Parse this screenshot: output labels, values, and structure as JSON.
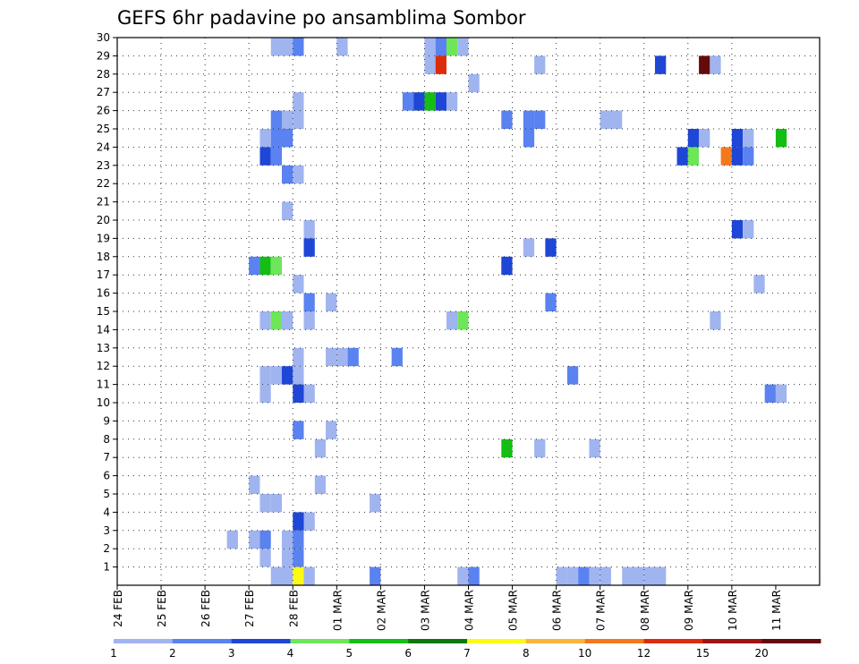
{
  "chart_data": {
    "type": "heatmap",
    "title": "GEFS 6hr padavine po ansamblima Sombor",
    "x_tick_labels": [
      "24 FEB",
      "25 FEB",
      "26 FEB",
      "27 FEB",
      "28 FEB",
      "01 MAR",
      "02 MAR",
      "03 MAR",
      "04 MAR",
      "05 MAR",
      "06 MAR",
      "07 MAR",
      "08 MAR",
      "09 MAR",
      "10 MAR",
      "11 MAR"
    ],
    "y_tick_labels": [
      "1",
      "2",
      "3",
      "4",
      "5",
      "6",
      "7",
      "8",
      "9",
      "10",
      "11",
      "12",
      "13",
      "14",
      "15",
      "16",
      "17",
      "18",
      "19",
      "20",
      "21",
      "22",
      "23",
      "24",
      "25",
      "26",
      "27",
      "28",
      "29",
      "30"
    ],
    "x_range_days": [
      0,
      16
    ],
    "y_range": [
      0,
      30
    ],
    "step_days": 0.25,
    "grid": true,
    "legend": {
      "position": "bottom",
      "labels": [
        "1",
        "2",
        "3",
        "4",
        "5",
        "6",
        "7",
        "8",
        "10",
        "12",
        "15",
        "20"
      ],
      "colors": [
        "#a0b4f0",
        "#5a82f0",
        "#1e46d7",
        "#6ee65a",
        "#14be14",
        "#0a780a",
        "#fafa14",
        "#fab43c",
        "#f5781e",
        "#dc2d0a",
        "#a01414",
        "#640a0a"
      ]
    },
    "cells": [
      {
        "m": 30,
        "t": 3.5,
        "c": "#a0b4f0"
      },
      {
        "m": 30,
        "t": 3.75,
        "c": "#a0b4f0"
      },
      {
        "m": 30,
        "t": 4.0,
        "c": "#5a82f0"
      },
      {
        "m": 30,
        "t": 5.0,
        "c": "#a0b4f0"
      },
      {
        "m": 30,
        "t": 7.0,
        "c": "#a0b4f0"
      },
      {
        "m": 30,
        "t": 7.25,
        "c": "#5a82f0"
      },
      {
        "m": 30,
        "t": 7.5,
        "c": "#6ee65a"
      },
      {
        "m": 30,
        "t": 7.75,
        "c": "#a0b4f0"
      },
      {
        "m": 29,
        "t": 7.0,
        "c": "#a0b4f0"
      },
      {
        "m": 29,
        "t": 7.25,
        "c": "#dc2d0a"
      },
      {
        "m": 29,
        "t": 9.5,
        "c": "#a0b4f0"
      },
      {
        "m": 29,
        "t": 12.25,
        "c": "#1e46d7"
      },
      {
        "m": 29,
        "t": 13.25,
        "c": "#640a0a"
      },
      {
        "m": 29,
        "t": 13.5,
        "c": "#a0b4f0"
      },
      {
        "m": 28,
        "t": 8.0,
        "c": "#a0b4f0"
      },
      {
        "m": 27,
        "t": 4.0,
        "c": "#a0b4f0"
      },
      {
        "m": 27,
        "t": 6.5,
        "c": "#5a82f0"
      },
      {
        "m": 27,
        "t": 6.75,
        "c": "#1e46d7"
      },
      {
        "m": 27,
        "t": 7.0,
        "c": "#14be14"
      },
      {
        "m": 27,
        "t": 7.25,
        "c": "#1e46d7"
      },
      {
        "m": 27,
        "t": 7.5,
        "c": "#a0b4f0"
      },
      {
        "m": 26,
        "t": 3.5,
        "c": "#5a82f0"
      },
      {
        "m": 26,
        "t": 3.75,
        "c": "#a0b4f0"
      },
      {
        "m": 26,
        "t": 4.0,
        "c": "#a0b4f0"
      },
      {
        "m": 26,
        "t": 8.75,
        "c": "#5a82f0"
      },
      {
        "m": 26,
        "t": 9.25,
        "c": "#5a82f0"
      },
      {
        "m": 26,
        "t": 9.5,
        "c": "#5a82f0"
      },
      {
        "m": 26,
        "t": 11.0,
        "c": "#a0b4f0"
      },
      {
        "m": 26,
        "t": 11.25,
        "c": "#a0b4f0"
      },
      {
        "m": 25,
        "t": 3.25,
        "c": "#a0b4f0"
      },
      {
        "m": 25,
        "t": 3.5,
        "c": "#5a82f0"
      },
      {
        "m": 25,
        "t": 3.75,
        "c": "#5a82f0"
      },
      {
        "m": 25,
        "t": 9.25,
        "c": "#5a82f0"
      },
      {
        "m": 25,
        "t": 13.0,
        "c": "#1e46d7"
      },
      {
        "m": 25,
        "t": 13.25,
        "c": "#a0b4f0"
      },
      {
        "m": 25,
        "t": 14.0,
        "c": "#1e46d7"
      },
      {
        "m": 25,
        "t": 14.25,
        "c": "#a0b4f0"
      },
      {
        "m": 25,
        "t": 15.0,
        "c": "#14be14"
      },
      {
        "m": 24,
        "t": 3.25,
        "c": "#1e46d7"
      },
      {
        "m": 24,
        "t": 3.5,
        "c": "#5a82f0"
      },
      {
        "m": 24,
        "t": 12.75,
        "c": "#1e46d7"
      },
      {
        "m": 24,
        "t": 13.0,
        "c": "#6ee65a"
      },
      {
        "m": 24,
        "t": 13.75,
        "c": "#f5781e"
      },
      {
        "m": 24,
        "t": 14.0,
        "c": "#1e46d7"
      },
      {
        "m": 24,
        "t": 14.25,
        "c": "#5a82f0"
      },
      {
        "m": 23,
        "t": 3.75,
        "c": "#5a82f0"
      },
      {
        "m": 23,
        "t": 4.0,
        "c": "#a0b4f0"
      },
      {
        "m": 21,
        "t": 3.75,
        "c": "#a0b4f0"
      },
      {
        "m": 20,
        "t": 4.25,
        "c": "#a0b4f0"
      },
      {
        "m": 20,
        "t": 14.0,
        "c": "#1e46d7"
      },
      {
        "m": 20,
        "t": 14.25,
        "c": "#a0b4f0"
      },
      {
        "m": 19,
        "t": 4.25,
        "c": "#1e46d7"
      },
      {
        "m": 19,
        "t": 9.25,
        "c": "#a0b4f0"
      },
      {
        "m": 19,
        "t": 9.75,
        "c": "#1e46d7"
      },
      {
        "m": 18,
        "t": 3.0,
        "c": "#5a82f0"
      },
      {
        "m": 18,
        "t": 3.25,
        "c": "#14be14"
      },
      {
        "m": 18,
        "t": 3.5,
        "c": "#6ee65a"
      },
      {
        "m": 18,
        "t": 8.75,
        "c": "#1e46d7"
      },
      {
        "m": 17,
        "t": 4.0,
        "c": "#a0b4f0"
      },
      {
        "m": 17,
        "t": 14.5,
        "c": "#a0b4f0"
      },
      {
        "m": 16,
        "t": 4.25,
        "c": "#5a82f0"
      },
      {
        "m": 16,
        "t": 4.75,
        "c": "#a0b4f0"
      },
      {
        "m": 16,
        "t": 9.75,
        "c": "#5a82f0"
      },
      {
        "m": 15,
        "t": 3.25,
        "c": "#a0b4f0"
      },
      {
        "m": 15,
        "t": 3.5,
        "c": "#6ee65a"
      },
      {
        "m": 15,
        "t": 3.75,
        "c": "#a0b4f0"
      },
      {
        "m": 15,
        "t": 4.25,
        "c": "#a0b4f0"
      },
      {
        "m": 15,
        "t": 7.5,
        "c": "#a0b4f0"
      },
      {
        "m": 15,
        "t": 7.75,
        "c": "#6ee65a"
      },
      {
        "m": 15,
        "t": 13.5,
        "c": "#a0b4f0"
      },
      {
        "m": 13,
        "t": 4.0,
        "c": "#a0b4f0"
      },
      {
        "m": 13,
        "t": 4.75,
        "c": "#a0b4f0"
      },
      {
        "m": 13,
        "t": 5.0,
        "c": "#a0b4f0"
      },
      {
        "m": 13,
        "t": 5.25,
        "c": "#5a82f0"
      },
      {
        "m": 13,
        "t": 6.25,
        "c": "#5a82f0"
      },
      {
        "m": 12,
        "t": 3.25,
        "c": "#a0b4f0"
      },
      {
        "m": 12,
        "t": 3.5,
        "c": "#a0b4f0"
      },
      {
        "m": 12,
        "t": 3.75,
        "c": "#1e46d7"
      },
      {
        "m": 12,
        "t": 4.0,
        "c": "#a0b4f0"
      },
      {
        "m": 12,
        "t": 10.25,
        "c": "#5a82f0"
      },
      {
        "m": 11,
        "t": 3.25,
        "c": "#a0b4f0"
      },
      {
        "m": 11,
        "t": 4.0,
        "c": "#1e46d7"
      },
      {
        "m": 11,
        "t": 4.25,
        "c": "#a0b4f0"
      },
      {
        "m": 11,
        "t": 14.75,
        "c": "#5a82f0"
      },
      {
        "m": 11,
        "t": 15.0,
        "c": "#a0b4f0"
      },
      {
        "m": 9,
        "t": 4.0,
        "c": "#5a82f0"
      },
      {
        "m": 9,
        "t": 4.75,
        "c": "#a0b4f0"
      },
      {
        "m": 8,
        "t": 4.5,
        "c": "#a0b4f0"
      },
      {
        "m": 8,
        "t": 8.75,
        "c": "#14be14"
      },
      {
        "m": 8,
        "t": 9.5,
        "c": "#a0b4f0"
      },
      {
        "m": 8,
        "t": 10.75,
        "c": "#a0b4f0"
      },
      {
        "m": 6,
        "t": 3.0,
        "c": "#a0b4f0"
      },
      {
        "m": 6,
        "t": 4.5,
        "c": "#a0b4f0"
      },
      {
        "m": 5,
        "t": 3.25,
        "c": "#a0b4f0"
      },
      {
        "m": 5,
        "t": 3.5,
        "c": "#a0b4f0"
      },
      {
        "m": 5,
        "t": 5.75,
        "c": "#a0b4f0"
      },
      {
        "m": 4,
        "t": 4.0,
        "c": "#1e46d7"
      },
      {
        "m": 4,
        "t": 4.25,
        "c": "#a0b4f0"
      },
      {
        "m": 3,
        "t": 2.5,
        "c": "#a0b4f0"
      },
      {
        "m": 3,
        "t": 3.0,
        "c": "#a0b4f0"
      },
      {
        "m": 3,
        "t": 3.25,
        "c": "#5a82f0"
      },
      {
        "m": 3,
        "t": 3.75,
        "c": "#a0b4f0"
      },
      {
        "m": 3,
        "t": 4.0,
        "c": "#5a82f0"
      },
      {
        "m": 2,
        "t": 3.25,
        "c": "#a0b4f0"
      },
      {
        "m": 2,
        "t": 3.75,
        "c": "#a0b4f0"
      },
      {
        "m": 2,
        "t": 4.0,
        "c": "#5a82f0"
      },
      {
        "m": 1,
        "t": 3.5,
        "c": "#a0b4f0"
      },
      {
        "m": 1,
        "t": 3.75,
        "c": "#a0b4f0"
      },
      {
        "m": 1,
        "t": 4.0,
        "c": "#fafa14"
      },
      {
        "m": 1,
        "t": 4.25,
        "c": "#a0b4f0"
      },
      {
        "m": 1,
        "t": 5.75,
        "c": "#5a82f0"
      },
      {
        "m": 1,
        "t": 7.75,
        "c": "#a0b4f0"
      },
      {
        "m": 1,
        "t": 8.0,
        "c": "#5a82f0"
      },
      {
        "m": 1,
        "t": 10.0,
        "c": "#a0b4f0"
      },
      {
        "m": 1,
        "t": 10.25,
        "c": "#a0b4f0"
      },
      {
        "m": 1,
        "t": 10.5,
        "c": "#5a82f0"
      },
      {
        "m": 1,
        "t": 10.75,
        "c": "#a0b4f0"
      },
      {
        "m": 1,
        "t": 11.0,
        "c": "#a0b4f0"
      },
      {
        "m": 1,
        "t": 11.5,
        "c": "#a0b4f0"
      },
      {
        "m": 1,
        "t": 11.75,
        "c": "#a0b4f0"
      },
      {
        "m": 1,
        "t": 12.0,
        "c": "#a0b4f0"
      },
      {
        "m": 1,
        "t": 12.25,
        "c": "#a0b4f0"
      }
    ]
  }
}
